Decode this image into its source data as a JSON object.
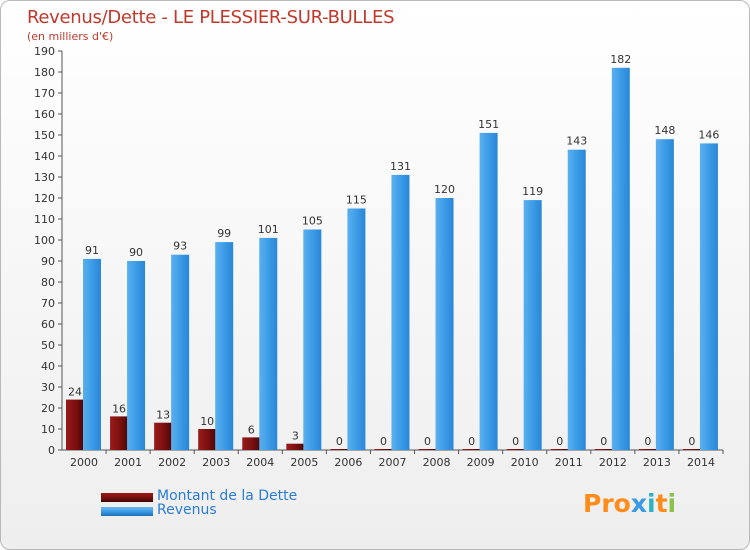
{
  "title": "Revenus/Dette - LE PLESSIER-SUR-BULLES",
  "subtitle": "(en milliers d'€)",
  "logo": "Proxiti",
  "colors": {
    "dette": "#7b0f0f",
    "revenus": "#3a9ae6",
    "title": "#c0392b",
    "legend_text": "#2b7bd8",
    "logo": [
      "#ff8c1a",
      "#ff8c1a",
      "#ff8c1a",
      "#3a9ae6",
      "#2fb3c4",
      "#ff8c1a",
      "#8bc34a"
    ]
  },
  "chart_data": {
    "type": "bar",
    "categories": [
      "2000",
      "2001",
      "2002",
      "2003",
      "2004",
      "2005",
      "2006",
      "2007",
      "2008",
      "2009",
      "2010",
      "2011",
      "2012",
      "2013",
      "2014"
    ],
    "series": [
      {
        "name": "Montant de la Dette",
        "values": [
          24,
          16,
          13,
          10,
          6,
          3,
          0,
          0,
          0,
          0,
          0,
          0,
          0,
          0,
          0
        ]
      },
      {
        "name": "Revenus",
        "values": [
          91,
          90,
          93,
          99,
          101,
          105,
          115,
          131,
          120,
          151,
          119,
          143,
          182,
          148,
          146
        ]
      }
    ],
    "ylim": [
      0,
      190
    ],
    "ytick_step": 10,
    "grid": false,
    "legend_position": "bottom-left"
  }
}
